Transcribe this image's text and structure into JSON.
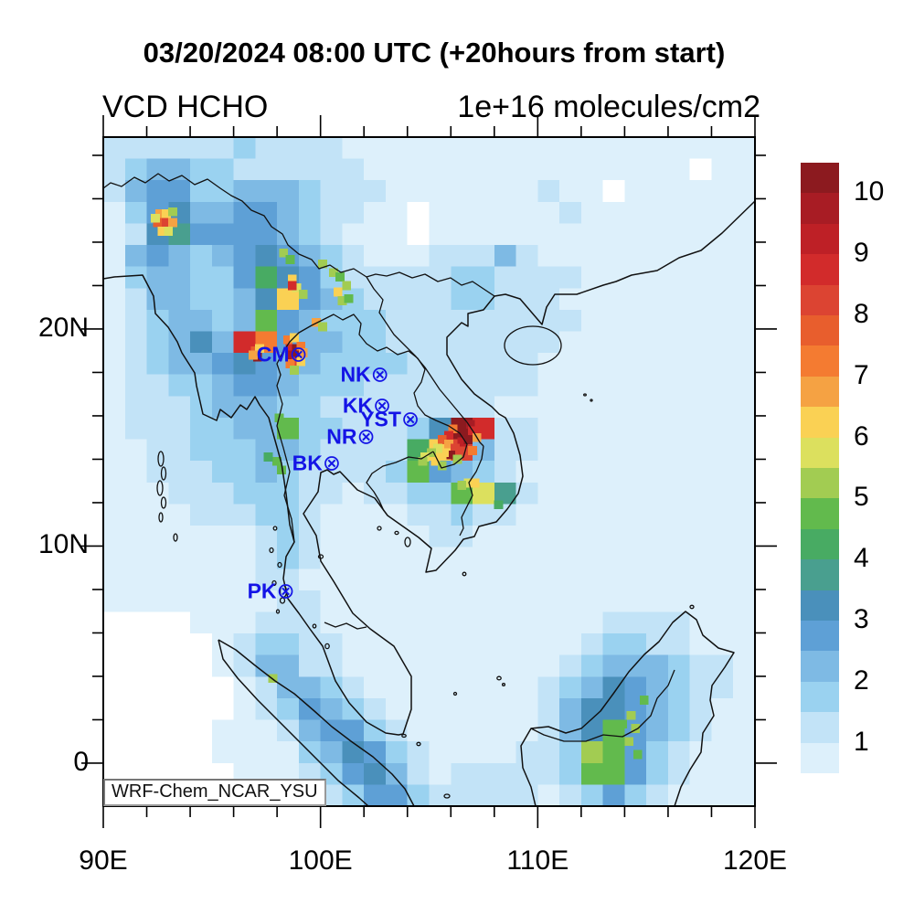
{
  "figure": {
    "title": "03/20/2024 08:00 UTC (+20hours from start)",
    "subtitle_left": "VCD HCHO",
    "subtitle_right": "1e+16 molecules/cm2",
    "credit": "WRF-Chem_NCAR_YSU"
  },
  "axes": {
    "x_ticks": [
      {
        "lon": 90,
        "label": "90E"
      },
      {
        "lon": 100,
        "label": "100E"
      },
      {
        "lon": 110,
        "label": "110E"
      },
      {
        "lon": 120,
        "label": "120E"
      }
    ],
    "y_ticks": [
      {
        "lat": 0,
        "label": "0"
      },
      {
        "lat": 10,
        "label": "10N"
      },
      {
        "lat": 20,
        "label": "20N"
      }
    ],
    "minor_tick_interval_deg": 2,
    "lon_range": [
      90,
      120
    ],
    "lat_range": [
      -1.98,
      28.84
    ]
  },
  "colorbar": {
    "labels": [
      "10",
      "9",
      "8",
      "7",
      "6",
      "5",
      "4",
      "3",
      "2",
      "1"
    ],
    "tick_values": [
      10,
      9,
      8,
      7,
      6,
      5,
      4,
      3,
      2,
      1
    ]
  },
  "stations": [
    {
      "code": "CM",
      "symbol": "⊗",
      "lon": 98.99,
      "lat": 18.79
    },
    {
      "code": "NK",
      "symbol": "⊗",
      "lon": 102.74,
      "lat": 17.87
    },
    {
      "code": "KK",
      "symbol": "⊗",
      "lon": 102.84,
      "lat": 16.44
    },
    {
      "code": "YST",
      "symbol": "⊗",
      "lon": 104.14,
      "lat": 15.79
    },
    {
      "code": "NR",
      "symbol": "⊗",
      "lon": 102.1,
      "lat": 14.97
    },
    {
      "code": "BK",
      "symbol": "⊗",
      "lon": 100.52,
      "lat": 13.75
    },
    {
      "code": "PK",
      "symbol": "⊗",
      "lon": 98.4,
      "lat": 7.89
    }
  ],
  "chart_data": {
    "type": "heatmap",
    "title": "VCD HCHO",
    "units": "1e+16 molecules/cm2",
    "timestamp": "03/20/2024 08:00 UTC (+20hours from start)",
    "lon_range": [
      90,
      120
    ],
    "lat_range": [
      -1.98,
      28.84
    ],
    "levels": [
      0.5,
      1,
      1.5,
      2,
      2.5,
      3,
      3.5,
      4,
      4.5,
      5,
      5.5,
      6,
      6.5,
      7,
      7.5,
      8,
      8.5,
      9,
      9.5,
      10,
      10.5
    ],
    "palette_colors": [
      "#DDF0FB",
      "#C2E3F7",
      "#9AD2F0",
      "#7EBAE4",
      "#5EA0D6",
      "#4A90BB",
      "#499F8F",
      "#48AB63",
      "#62BA4D",
      "#A2CC52",
      "#DCE05E",
      "#FAD154",
      "#F5A243",
      "#F47B31",
      "#E85E2D",
      "#DC4432",
      "#D22B2B",
      "#BE2026",
      "#A81C24",
      "#8C1A1F"
    ],
    "below_min_color": "#FFFFFF",
    "grid_cols": 30,
    "grid_rows": 31,
    "grid_origin": "top-left (90E,28.84N), 1 deg cells approx",
    "value_encoding": "each char = one cell: 0 => <0.5 (white); 1..9,A..K => palette band index 1..20 (0.5 wide bands starting at 0.5)",
    "grid": [
      "222222322221111111111111111111",
      "234433222222111111111111111011",
      "245533444322211111112110111111",
      "135644554322110111111211111111",
      "126755554321110111111111111111",
      "145434565432111222421111111111",
      "134433586532222233222211111111",
      "12443346C543222233222111111111",
      "123443495433322222222211111111",
      "123464HE5443322222222111111111",
      "123445654433332222221111111111",
      "122334554333222222221111111111",
      "122234443322222222111111111111",
      "1222334493322236KH221111111111",
      "112233344322228CG4221111111111",
      "112223343222239543211111111111",
      "11122233322122339B721111111111",
      "111122233211112232211111111111",
      "111111123211111221111111111111",
      "111111123211111111111111111111",
      "111111122111111111111111111111",
      "111111112211111111111111111111",
      "000011122211111111111112222111",
      "000001233221111111111123322111",
      "000001244221111111111234443221",
      "000000124432111111112346543221",
      "000000123543211111112466543211",
      "000001112455321111112469543211",
      "0000011113465321111223A9532111",
      "000000111235642122222399532111",
      "000000011123553222221235321111"
    ],
    "hotspots": [
      [
        92.6,
        25.3,
        6.5
      ],
      [
        92.9,
        25.3,
        6.0
      ],
      [
        93.2,
        25.4,
        5.0
      ],
      [
        92.5,
        24.9,
        7.5
      ],
      [
        92.9,
        24.9,
        8.0
      ],
      [
        93.2,
        24.9,
        6.5
      ],
      [
        92.7,
        24.5,
        6.0
      ],
      [
        93.0,
        24.5,
        5.5
      ],
      [
        92.4,
        25.1,
        5.5
      ],
      [
        100.6,
        22.6,
        5.0
      ],
      [
        100.9,
        22.4,
        4.8
      ],
      [
        101.2,
        22.0,
        5.2
      ],
      [
        100.8,
        21.7,
        6.0
      ],
      [
        101.0,
        21.3,
        5.0
      ],
      [
        101.3,
        21.4,
        4.8
      ],
      [
        98.3,
        23.5,
        5.0
      ],
      [
        98.6,
        23.2,
        4.8
      ],
      [
        100.1,
        23.0,
        5.0
      ],
      [
        98.9,
        21.9,
        5.5
      ],
      [
        99.2,
        21.6,
        5.0
      ],
      [
        98.7,
        22.3,
        6.3
      ],
      [
        98.7,
        22.0,
        8.5
      ],
      [
        99.8,
        20.3,
        6.5
      ],
      [
        100.1,
        20.1,
        5.2
      ],
      [
        97.0,
        19.0,
        7.5
      ],
      [
        97.2,
        19.1,
        6.0
      ],
      [
        97.1,
        18.7,
        10.0
      ],
      [
        96.9,
        18.8,
        6.5
      ],
      [
        98.5,
        19.5,
        7.0
      ],
      [
        98.8,
        19.6,
        6.0
      ],
      [
        98.6,
        19.1,
        8.5
      ],
      [
        98.9,
        19.1,
        10.2
      ],
      [
        99.1,
        19.2,
        7.0
      ],
      [
        98.6,
        18.8,
        9.5
      ],
      [
        98.9,
        18.8,
        10.3
      ],
      [
        99.2,
        18.9,
        6.5
      ],
      [
        98.9,
        18.5,
        8.0
      ],
      [
        99.1,
        18.5,
        6.0
      ],
      [
        98.6,
        18.4,
        7.0
      ],
      [
        98.8,
        18.1,
        5.0
      ],
      [
        98.1,
        15.9,
        4.8
      ],
      [
        98.0,
        13.9,
        4.8
      ],
      [
        97.6,
        14.1,
        4.3
      ],
      [
        98.2,
        13.5,
        4.6
      ],
      [
        106.3,
        15.6,
        10.2
      ],
      [
        106.6,
        15.7,
        10.3
      ],
      [
        106.9,
        15.6,
        9.5
      ],
      [
        106.4,
        15.2,
        10.2
      ],
      [
        106.7,
        15.2,
        10.3
      ],
      [
        107.0,
        15.3,
        8.5
      ],
      [
        106.5,
        14.8,
        9.0
      ],
      [
        106.8,
        14.9,
        10.2
      ],
      [
        106.1,
        15.4,
        7.0
      ],
      [
        105.9,
        15.1,
        8.5
      ],
      [
        105.6,
        14.9,
        7.5
      ],
      [
        105.9,
        14.7,
        6.5
      ],
      [
        106.2,
        14.5,
        8.2
      ],
      [
        106.0,
        14.2,
        10.0
      ],
      [
        105.7,
        14.3,
        6.0
      ],
      [
        105.4,
        14.5,
        5.5
      ],
      [
        105.1,
        14.3,
        5.0
      ],
      [
        104.8,
        14.1,
        5.5
      ],
      [
        105.3,
        13.9,
        6.3
      ],
      [
        105.6,
        13.7,
        5.0
      ],
      [
        106.3,
        14.0,
        5.2
      ],
      [
        107.0,
        14.4,
        7.0
      ],
      [
        107.2,
        15.0,
        6.5
      ],
      [
        104.7,
        13.9,
        5.0
      ],
      [
        106.8,
        12.9,
        5.5
      ],
      [
        107.1,
        12.9,
        6.2
      ],
      [
        106.5,
        12.8,
        5.0
      ],
      [
        108.2,
        11.9,
        4.0
      ],
      [
        114.3,
        2.2,
        5.0
      ],
      [
        114.5,
        1.6,
        5.2
      ],
      [
        114.2,
        1.0,
        5.0
      ],
      [
        114.6,
        0.4,
        4.8
      ],
      [
        114.9,
        2.9,
        4.5
      ],
      [
        113.9,
        1.8,
        4.6
      ],
      [
        97.8,
        3.9,
        5.0
      ]
    ]
  }
}
